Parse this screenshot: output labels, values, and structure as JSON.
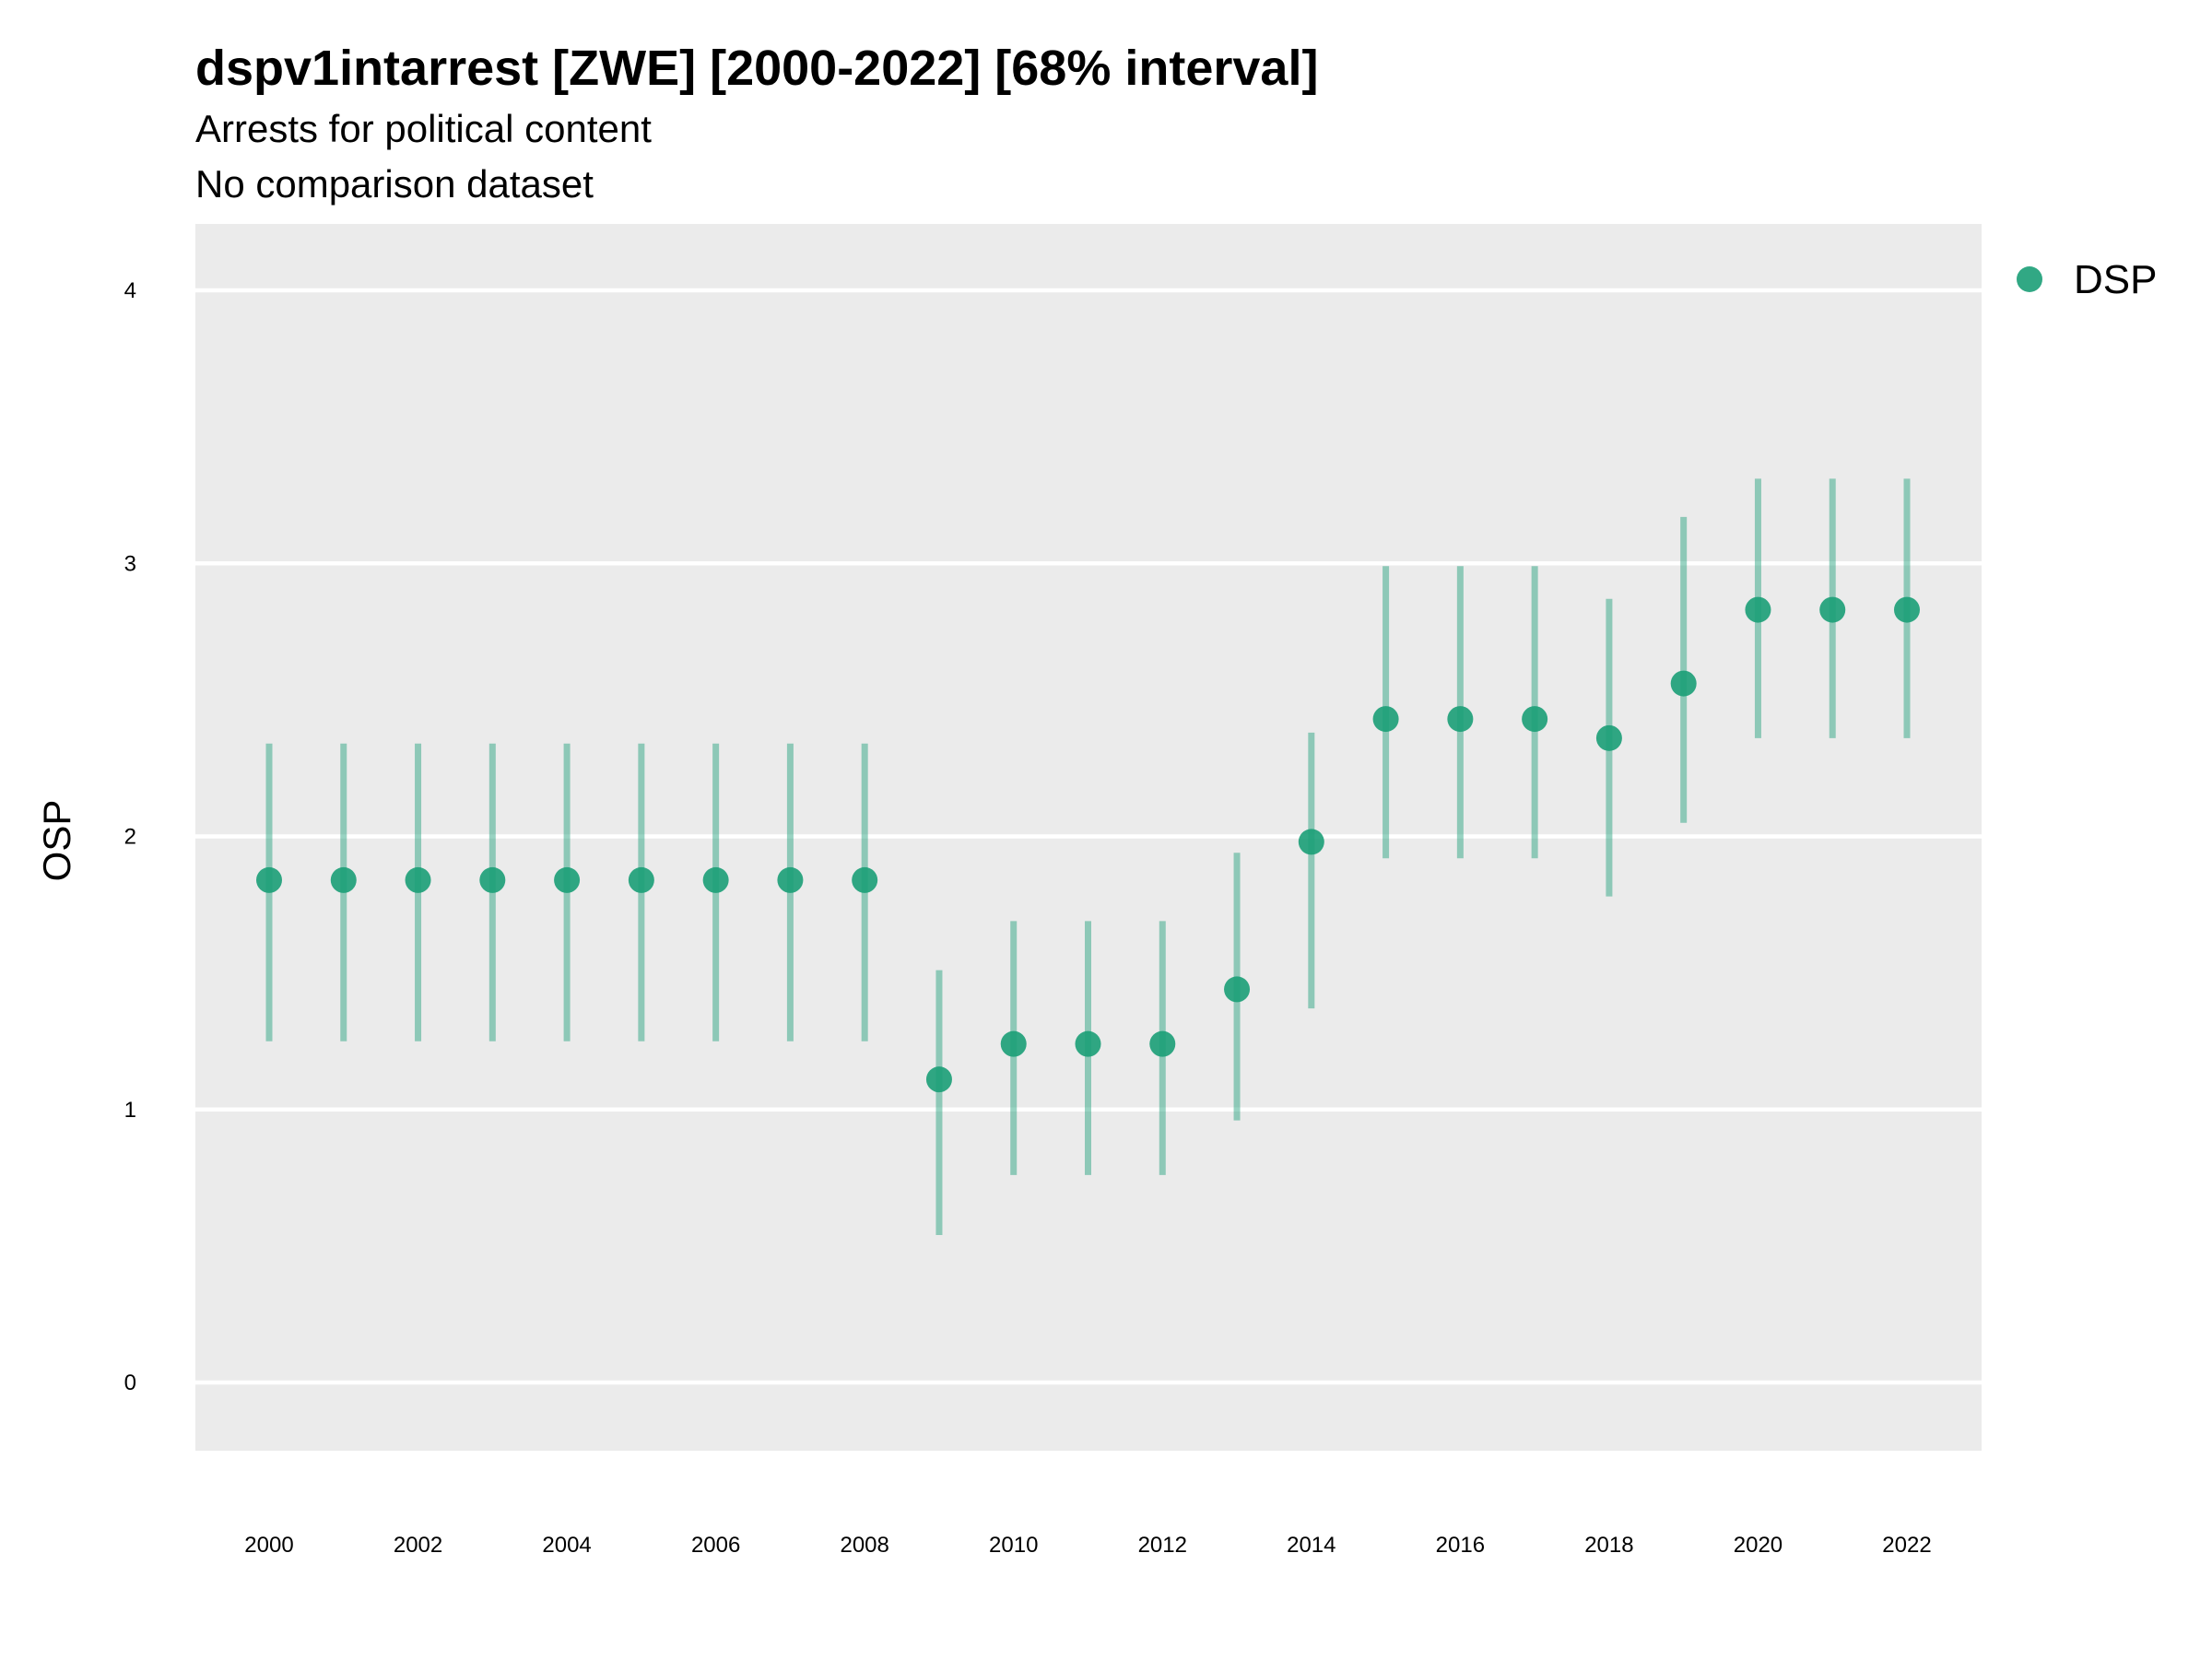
{
  "chart_data": {
    "type": "scatter",
    "title": "dspv1intarrest [ZWE] [2000-2022] [68% interval]",
    "subtitle": "Arrests for political content",
    "caption_line": "No comparison dataset",
    "xlabel": "",
    "ylabel": "OSP",
    "ylim": [
      -0.25,
      4.25
    ],
    "yticks": [
      0,
      1,
      2,
      3,
      4
    ],
    "xticks": [
      2000,
      2002,
      2004,
      2006,
      2008,
      2010,
      2012,
      2014,
      2016,
      2018,
      2020,
      2022
    ],
    "xlim": [
      1999,
      2023
    ],
    "grid": true,
    "legend": {
      "position": "right",
      "entries": [
        "DSP"
      ]
    },
    "colors": {
      "point": "#1b9e77",
      "panel": "#ebebeb",
      "grid": "#ffffff"
    },
    "series": [
      {
        "name": "DSP",
        "x": [
          2000,
          2001,
          2002,
          2003,
          2004,
          2005,
          2006,
          2007,
          2008,
          2009,
          2010,
          2011,
          2012,
          2013,
          2014,
          2015,
          2016,
          2017,
          2018,
          2019,
          2020,
          2021,
          2022
        ],
        "y": [
          1.84,
          1.84,
          1.84,
          1.84,
          1.84,
          1.84,
          1.84,
          1.84,
          1.84,
          1.11,
          1.24,
          1.24,
          1.24,
          1.44,
          1.98,
          2.43,
          2.43,
          2.43,
          2.36,
          2.56,
          2.83,
          2.83,
          2.83
        ],
        "lower": [
          1.25,
          1.25,
          1.25,
          1.25,
          1.25,
          1.25,
          1.25,
          1.25,
          1.25,
          0.54,
          0.76,
          0.76,
          0.76,
          0.96,
          1.37,
          1.92,
          1.92,
          1.92,
          1.78,
          2.05,
          2.36,
          2.36,
          2.36
        ],
        "upper": [
          2.34,
          2.34,
          2.34,
          2.34,
          2.34,
          2.34,
          2.34,
          2.34,
          2.34,
          1.51,
          1.69,
          1.69,
          1.69,
          1.94,
          2.38,
          2.99,
          2.99,
          2.99,
          2.87,
          3.17,
          3.31,
          3.31,
          3.31
        ]
      }
    ]
  }
}
